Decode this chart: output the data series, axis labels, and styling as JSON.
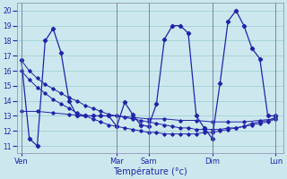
{
  "background_color": "#cce8ee",
  "grid_color": "#99cccc",
  "line_color": "#2222aa",
  "xlabel": "Température (°c)",
  "ylim": [
    10.5,
    20.5
  ],
  "yticks": [
    11,
    12,
    13,
    14,
    15,
    16,
    17,
    18,
    19,
    20
  ],
  "day_labels": [
    "Ven",
    "Mar",
    "Sam",
    "Dim",
    "Lun"
  ],
  "day_positions": [
    0,
    12,
    16,
    24,
    32
  ],
  "xlim": [
    -0.5,
    33
  ],
  "series_main": [
    0,
    1,
    2,
    3,
    4,
    5,
    6,
    7,
    8,
    9,
    10,
    11,
    12,
    13,
    14,
    15,
    16,
    17,
    18,
    19,
    20,
    21,
    22,
    23,
    24,
    25,
    26,
    27,
    28,
    29,
    30,
    31,
    32
  ],
  "temps_main": [
    16.7,
    11.5,
    11.0,
    18.0,
    18.8,
    17.2,
    14.0,
    13.0,
    13.0,
    13.0,
    13.0,
    13.0,
    12.3,
    13.9,
    13.1,
    12.4,
    12.3,
    13.8,
    18.1,
    19.0,
    19.0,
    18.5,
    13.0,
    12.2,
    11.5,
    15.2,
    19.3,
    20.0,
    19.0,
    17.5,
    16.8,
    13.0,
    13.0
  ],
  "trend1_x": [
    0,
    1,
    2,
    3,
    4,
    5,
    6,
    7,
    8,
    9,
    10,
    11,
    12,
    13,
    14,
    15,
    16,
    17,
    18,
    19,
    20,
    21,
    22,
    23,
    24,
    25,
    26,
    27,
    28,
    29,
    30,
    31,
    32
  ],
  "trend1_y": [
    16.7,
    16.0,
    15.5,
    15.1,
    14.8,
    14.5,
    14.2,
    14.0,
    13.7,
    13.5,
    13.3,
    13.1,
    13.0,
    12.9,
    12.8,
    12.7,
    12.6,
    12.5,
    12.4,
    12.3,
    12.2,
    12.2,
    12.1,
    12.1,
    12.1,
    12.1,
    12.2,
    12.2,
    12.3,
    12.4,
    12.5,
    12.6,
    12.8
  ],
  "trend2_x": [
    0,
    1,
    2,
    3,
    4,
    5,
    6,
    7,
    8,
    9,
    10,
    11,
    12,
    13,
    14,
    15,
    16,
    17,
    18,
    19,
    20,
    21,
    22,
    23,
    24,
    25,
    26,
    27,
    28,
    29,
    30,
    31,
    32
  ],
  "trend2_y": [
    16.0,
    15.4,
    14.9,
    14.5,
    14.1,
    13.8,
    13.5,
    13.2,
    13.0,
    12.8,
    12.6,
    12.4,
    12.3,
    12.2,
    12.1,
    12.0,
    11.9,
    11.9,
    11.8,
    11.8,
    11.8,
    11.8,
    11.8,
    11.9,
    11.9,
    12.0,
    12.1,
    12.2,
    12.3,
    12.5,
    12.6,
    12.7,
    12.9
  ],
  "trend3_x": [
    0,
    2,
    4,
    6,
    8,
    10,
    12,
    14,
    16,
    18,
    20,
    22,
    24,
    26,
    28,
    30,
    32
  ],
  "trend3_y": [
    13.3,
    13.3,
    13.2,
    13.1,
    13.0,
    13.0,
    13.0,
    12.9,
    12.8,
    12.8,
    12.7,
    12.7,
    12.6,
    12.6,
    12.6,
    12.7,
    12.8
  ]
}
